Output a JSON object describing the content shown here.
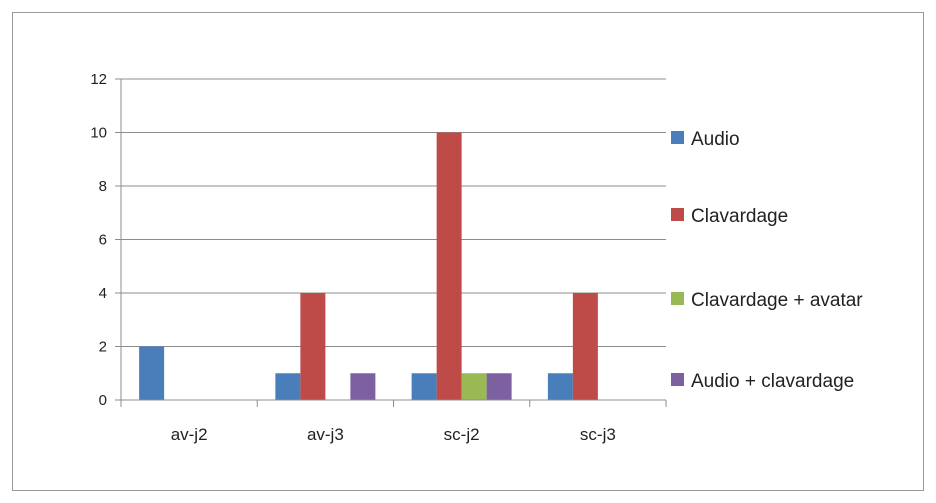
{
  "chart_data": {
    "type": "bar",
    "categories": [
      "av-j2",
      "av-j3",
      "sc-j2",
      "sc-j3"
    ],
    "series": [
      {
        "name": "Audio",
        "color": "#4a7ebb",
        "values": [
          2,
          1,
          1,
          1
        ]
      },
      {
        "name": "Clavardage",
        "color": "#be4b48",
        "values": [
          0,
          4,
          10,
          4
        ]
      },
      {
        "name": "Clavardage + avatar",
        "color": "#98b954",
        "values": [
          0,
          0,
          1,
          0
        ]
      },
      {
        "name": "Audio + clavardage",
        "color": "#7d60a0",
        "values": [
          0,
          1,
          1,
          0
        ]
      }
    ],
    "ylim": [
      0,
      12
    ],
    "yticks": [
      "0",
      "2",
      "4",
      "6",
      "8",
      "10",
      "12"
    ],
    "grid": true,
    "legend": "right"
  }
}
